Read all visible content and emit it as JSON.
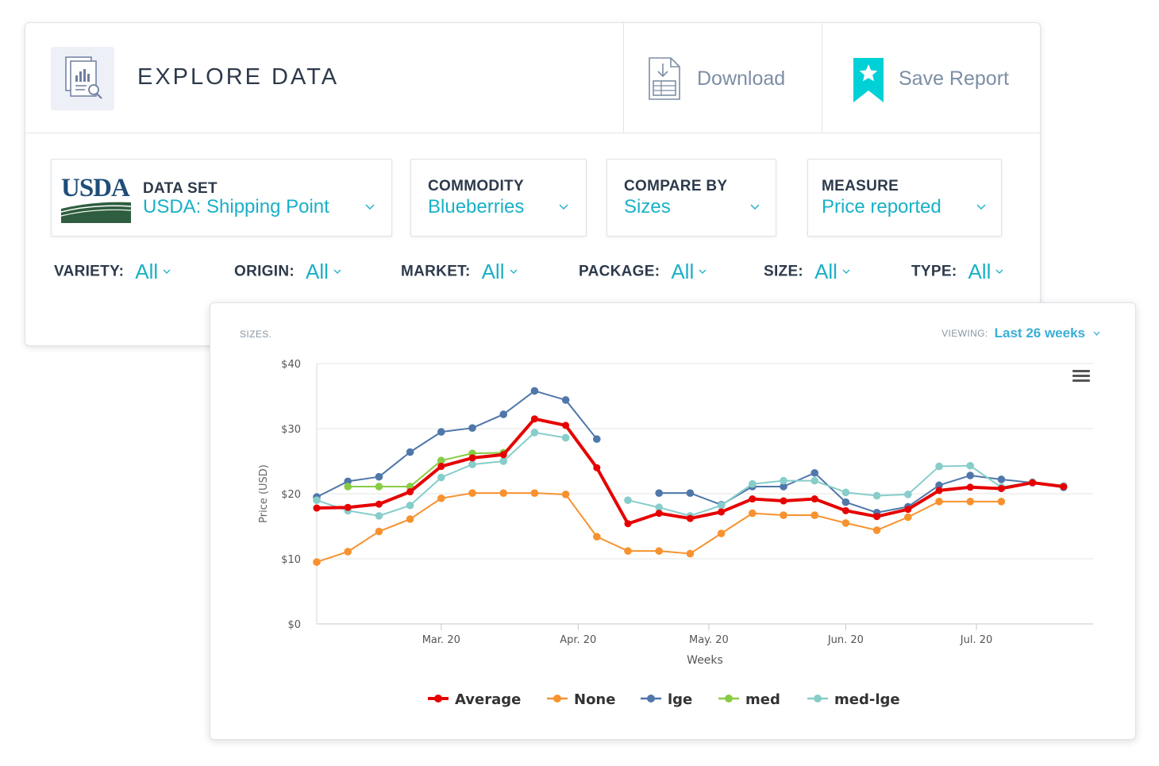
{
  "header": {
    "title": "EXPLORE DATA",
    "download_label": "Download",
    "save_label": "Save Report"
  },
  "selectors": {
    "dataset": {
      "logo_text": "USDA",
      "caption": "DATA SET",
      "value": "USDA: Shipping Point"
    },
    "commodity": {
      "caption": "COMMODITY",
      "value": "Blueberries"
    },
    "compare_by": {
      "caption": "COMPARE BY",
      "value": "Sizes"
    },
    "measure": {
      "caption": "MEASURE",
      "value": "Price reported"
    }
  },
  "filters": [
    {
      "label": "VARIETY:",
      "value": "All"
    },
    {
      "label": "ORIGIN:",
      "value": "All"
    },
    {
      "label": "MARKET:",
      "value": "All"
    },
    {
      "label": "PACKAGE:",
      "value": "All"
    },
    {
      "label": "SIZE:",
      "value": "All"
    },
    {
      "label": "TYPE:",
      "value": "All"
    }
  ],
  "chart_panel": {
    "section_label": "SIZES.",
    "viewing_label": "VIEWING:",
    "viewing_value": "Last 26 weeks"
  },
  "colors": {
    "accent": "#1ab0c6",
    "hamburger": "#555555"
  },
  "chart_data": {
    "type": "line",
    "xlabel": "Weeks",
    "ylabel": "Price (USD)",
    "ylim": [
      0,
      40
    ],
    "yticks": [
      "$0",
      "$10",
      "$20",
      "$30",
      "$40"
    ],
    "ytick_values": [
      0,
      10,
      20,
      30,
      40
    ],
    "xtick_labels": [
      "Mar. 20",
      "Apr. 20",
      "May. 20",
      "Jun. 20",
      "Jul. 20"
    ],
    "xtick_positions": [
      4,
      8.4,
      12.6,
      17,
      21.2
    ],
    "x": [
      0,
      1,
      2,
      3,
      4,
      5,
      6,
      7,
      8,
      9,
      10,
      11,
      12,
      13,
      14,
      15,
      16,
      17,
      18,
      19,
      20,
      21,
      22,
      23,
      24,
      25
    ],
    "grid": true,
    "legend_position": "bottom",
    "series": [
      {
        "name": "Average",
        "color": "#e60000",
        "values": [
          17.8,
          17.9,
          18.4,
          20.3,
          24.2,
          25.5,
          26.0,
          31.5,
          30.5,
          24.0,
          15.4,
          17.0,
          16.2,
          17.2,
          19.2,
          18.9,
          19.2,
          17.4,
          16.5,
          17.6,
          20.5,
          21.0,
          20.8,
          21.7,
          21.1,
          null
        ]
      },
      {
        "name": "None",
        "color": "#f7922f",
        "values": [
          9.5,
          11.1,
          14.2,
          16.1,
          19.3,
          20.1,
          20.1,
          20.1,
          19.9,
          13.4,
          11.2,
          11.2,
          10.8,
          13.9,
          17.0,
          16.7,
          16.7,
          15.5,
          14.4,
          16.4,
          18.8,
          18.8,
          18.8,
          null,
          null,
          null
        ]
      },
      {
        "name": "lge",
        "color": "#4f77aa",
        "values": [
          19.5,
          21.9,
          22.6,
          26.4,
          29.5,
          30.1,
          32.2,
          35.8,
          34.4,
          28.4,
          null,
          20.1,
          20.1,
          18.3,
          21.1,
          21.1,
          23.2,
          18.7,
          17.1,
          18.0,
          21.3,
          22.8,
          22.2,
          21.7,
          21.0,
          null
        ]
      },
      {
        "name": "med",
        "color": "#88cc44",
        "values": [
          null,
          21.1,
          21.1,
          21.1,
          25.1,
          26.2,
          26.3,
          null,
          null,
          null,
          null,
          null,
          null,
          null,
          null,
          null,
          null,
          null,
          null,
          null,
          null,
          null,
          null,
          null,
          null,
          null
        ]
      },
      {
        "name": "med-lge",
        "color": "#87cdca",
        "values": [
          19.0,
          17.4,
          16.6,
          18.2,
          22.5,
          24.5,
          25.0,
          29.4,
          28.6,
          null,
          19.0,
          17.9,
          16.6,
          18.2,
          21.5,
          22.0,
          22.0,
          20.2,
          19.7,
          19.9,
          24.2,
          24.3,
          21.0,
          21.8,
          21.2,
          null
        ]
      }
    ]
  }
}
